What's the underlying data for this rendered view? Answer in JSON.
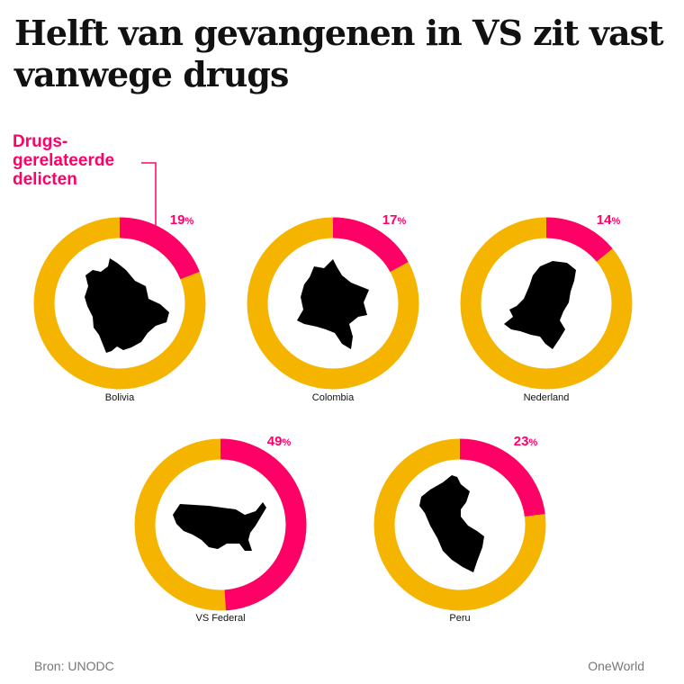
{
  "title": "Helft van gevangenen in VS zit vast vanwege drugs",
  "legend_label": "Drugs-\ngerelateerde\ndelicten",
  "source": "Bron: UNODC",
  "brand": "OneWorld",
  "colors": {
    "highlight": "#ff0066",
    "rest": "#f5b400",
    "map": "#000000"
  },
  "chart_data": {
    "type": "pie",
    "variant": "donut",
    "value_unit": "%",
    "charts": [
      {
        "label": "Bolivia",
        "value": 19,
        "icon": "bolivia-map-icon"
      },
      {
        "label": "Colombia",
        "value": 17,
        "icon": "colombia-map-icon"
      },
      {
        "label": "Nederland",
        "value": 14,
        "icon": "netherlands-map-icon"
      },
      {
        "label": "VS Federal",
        "value": 49,
        "icon": "usa-map-icon"
      },
      {
        "label": "Peru",
        "value": 23,
        "icon": "peru-map-icon"
      }
    ]
  }
}
